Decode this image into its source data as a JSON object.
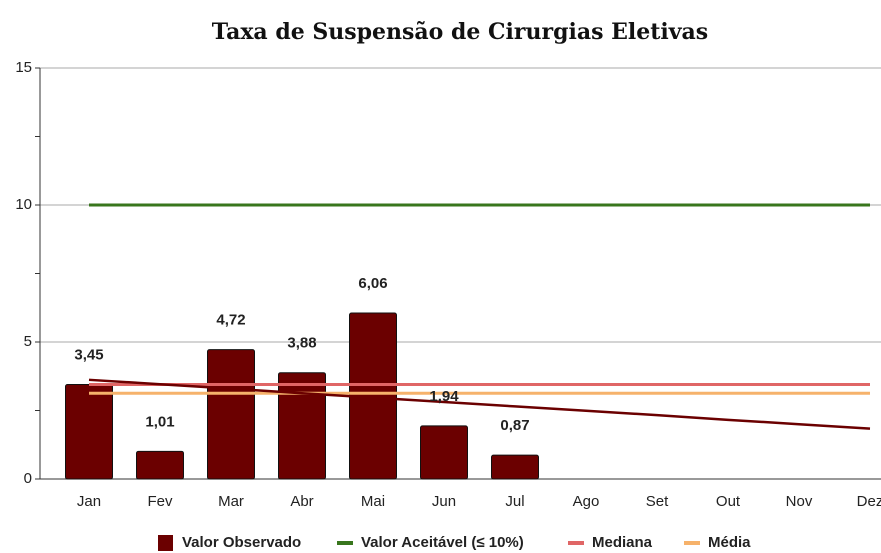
{
  "chart_data": {
    "type": "bar",
    "title": "Taxa de Suspensão de Cirurgias Eletivas",
    "categories": [
      "Jan",
      "Fev",
      "Mar",
      "Abr",
      "Mai",
      "Jun",
      "Jul",
      "Ago",
      "Set",
      "Out",
      "Nov",
      "Dez"
    ],
    "series": [
      {
        "name": "Valor Observado",
        "type": "bar",
        "color": "#6b0000",
        "values": [
          3.45,
          1.01,
          4.72,
          3.88,
          6.06,
          1.94,
          0.87,
          null,
          null,
          null,
          null,
          null
        ],
        "value_labels": [
          "3,45",
          "1,01",
          "4,72",
          "3,88",
          "6,06",
          "1,94",
          "0,87",
          null,
          null,
          null,
          null,
          null
        ]
      },
      {
        "name": "Valor Aceitável (≤ 10%)",
        "type": "line",
        "color": "#38761d",
        "values": [
          10,
          10,
          10,
          10,
          10,
          10,
          10,
          10,
          10,
          10,
          10,
          10
        ]
      },
      {
        "name": "Mediana",
        "type": "line",
        "color": "#e06666",
        "values": [
          3.45,
          3.45,
          3.45,
          3.45,
          3.45,
          3.45,
          3.45,
          3.45,
          3.45,
          3.45,
          3.45,
          3.45
        ]
      },
      {
        "name": "Média",
        "type": "line",
        "color": "#f6b26b",
        "values": [
          3.13,
          3.13,
          3.13,
          3.13,
          3.13,
          3.13,
          3.13,
          3.13,
          3.13,
          3.13,
          3.13,
          3.13
        ]
      }
    ],
    "trendline": {
      "color": "#6b0000",
      "values": [
        3.62,
        3.46,
        3.3,
        3.13,
        2.97,
        2.81,
        2.65,
        2.49,
        2.33,
        2.16,
        2.0,
        1.84
      ]
    },
    "ylim": [
      0,
      15
    ],
    "yticks": [
      0,
      5,
      10,
      15
    ],
    "yminorticks": [
      2.5,
      7.5,
      12.5
    ],
    "grid": true,
    "legend": "bottom"
  }
}
